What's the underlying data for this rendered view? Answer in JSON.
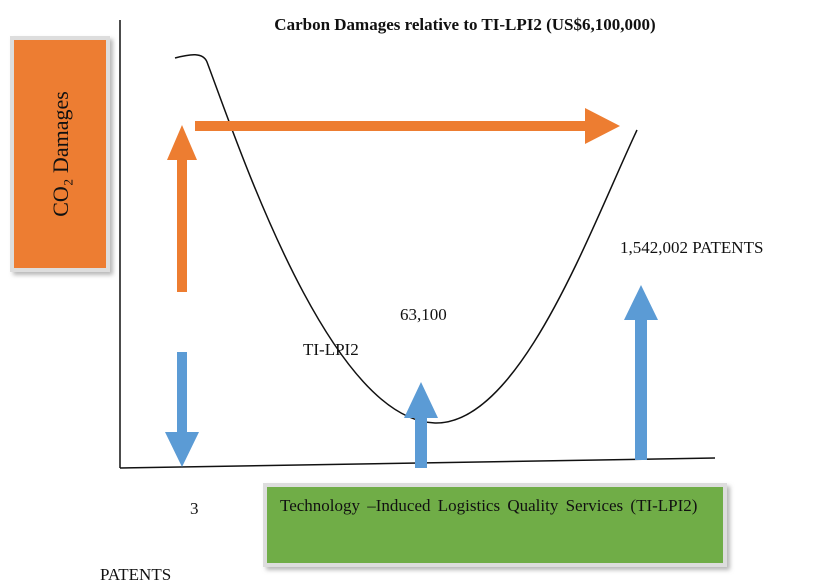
{
  "title": "Carbon Damages relative to TI-LPI2 (US$6,100,000)",
  "y_box": "CO₂ Damages",
  "x_box": "Technology –Induced Logistics Quality Services (TI-LPI2)",
  "labels": {
    "top_right": "1,542,002 PATENTS",
    "minimum": "63,100",
    "curve": "TI-LPI2",
    "origin": "3",
    "origin_unit": "PATENTS"
  }
}
